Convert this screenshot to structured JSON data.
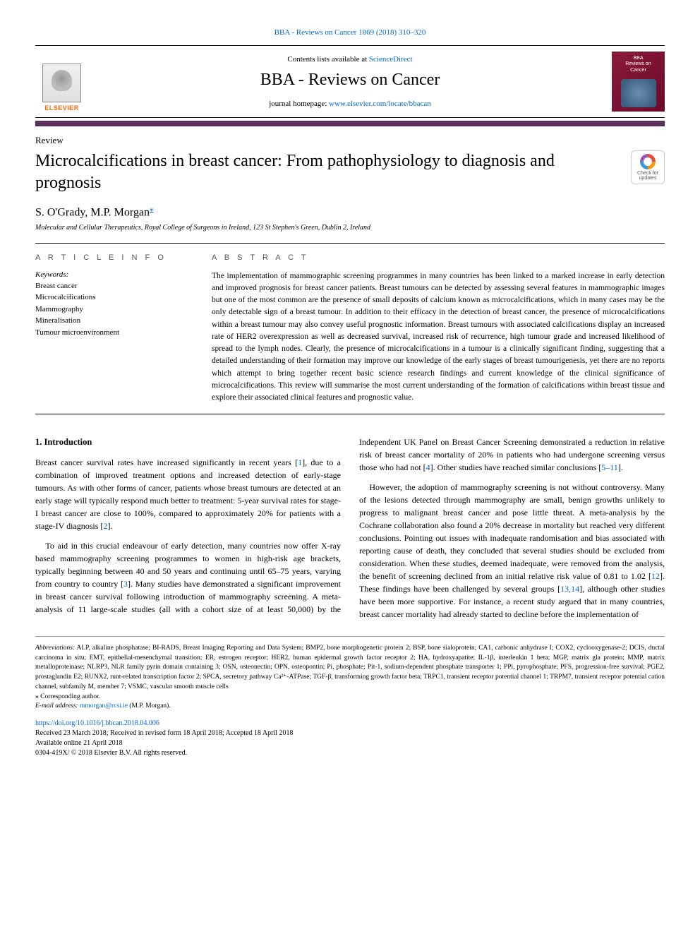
{
  "header": {
    "top_citation": "BBA - Reviews on Cancer 1869 (2018) 310–320",
    "contents_prefix": "Contents lists available at ",
    "contents_link": "ScienceDirect",
    "journal_name": "BBA - Reviews on Cancer",
    "homepage_prefix": "journal homepage: ",
    "homepage_link": "www.elsevier.com/locate/bbacan",
    "elsevier_label": "ELSEVIER",
    "cover_line1": "BBA",
    "cover_line2": "Reviews on",
    "cover_line3": "Cancer",
    "crossmark_line1": "Check for",
    "crossmark_line2": "updates"
  },
  "article": {
    "type": "Review",
    "title": "Microcalcifications in breast cancer: From pathophysiology to diagnosis and prognosis",
    "authors": "S. O'Grady, M.P. Morgan",
    "corresp_symbol": "⁎",
    "affiliation": "Molecular and Cellular Therapeutics, Royal College of Surgeons in Ireland, 123 St Stephen's Green, Dublin 2, Ireland"
  },
  "info": {
    "section_label": "A R T I C L E   I N F O",
    "keywords_label": "Keywords:",
    "keywords": [
      "Breast cancer",
      "Microcalcifications",
      "Mammography",
      "Mineralisation",
      "Tumour microenvironment"
    ]
  },
  "abstract": {
    "section_label": "A B S T R A C T",
    "text": "The implementation of mammographic screening programmes in many countries has been linked to a marked increase in early detection and improved prognosis for breast cancer patients. Breast tumours can be detected by assessing several features in mammographic images but one of the most common are the presence of small deposits of calcium known as microcalcifications, which in many cases may be the only detectable sign of a breast tumour. In addition to their efficacy in the detection of breast cancer, the presence of microcalcifications within a breast tumour may also convey useful prognostic information. Breast tumours with associated calcifications display an increased rate of HER2 overexpression as well as decreased survival, increased risk of recurrence, high tumour grade and increased likelihood of spread to the lymph nodes. Clearly, the presence of microcalcifications in a tumour is a clinically significant finding, suggesting that a detailed understanding of their formation may improve our knowledge of the early stages of breast tumourigenesis, yet there are no reports which attempt to bring together recent basic science research findings and current knowledge of the clinical significance of microcalcifications. This review will summarise the most current understanding of the formation of calcifications within breast tissue and explore their associated clinical features and prognostic value."
  },
  "body": {
    "heading1": "1. Introduction",
    "p1": "Breast cancer survival rates have increased significantly in recent years [1], due to a combination of improved treatment options and increased detection of early-stage tumours. As with other forms of cancer, patients whose breast tumours are detected at an early stage will typically respond much better to treatment: 5-year survival rates for stage-I breast cancer are close to 100%, compared to approximately 20% for patients with a stage-IV diagnosis [2].",
    "p2": "To aid in this crucial endeavour of early detection, many countries now offer X-ray based mammography screening programmes to women in high-risk age brackets, typically beginning between 40 and 50 years and continuing until 65–75 years, varying from country to country [3]. Many studies have demonstrated a significant improvement in breast cancer survival following introduction of mammography screening. A meta-analysis of 11 large-scale studies (all with a cohort size of at least 50,000) by the Independent UK Panel on Breast Cancer Screening demonstrated a reduction in relative risk of breast cancer mortality of 20% in patients who had undergone screening versus those who had not [4]. Other studies have reached similar conclusions [5–11].",
    "p3": "However, the adoption of mammography screening is not without controversy. Many of the lesions detected through mammography are small, benign growths unlikely to progress to malignant breast cancer and pose little threat. A meta-analysis by the Cochrane collaboration also found a 20% decrease in mortality but reached very different conclusions. Pointing out issues with inadequate randomisation and bias associated with reporting cause of death, they concluded that several studies should be excluded from consideration. When these studies, deemed inadequate, were removed from the analysis, the benefit of screening declined from an initial relative risk value of 0.81 to 1.02 [12]. These findings have been challenged by several groups [13,14], although other studies have been more supportive. For instance, a recent study argued that in many countries, breast cancer mortality had already started to decline before the implementation of"
  },
  "footer": {
    "abbrev_label": "Abbreviations:",
    "abbrev_text": " ALP, alkaline phosphatase; BI-RADS, Breast Imaging Reporting and Data System; BMP2, bone morphogenetic protein 2; BSP, bone sialoprotein; CA1, carbonic anhydrase I; COX2, cyclooxygenase-2; DCIS, ductal carcinoma in situ; EMT, epithelial-mesenchymal transition; ER, estrogen receptor; HER2, human epidermal growth factor receptor 2; HA, hydroxyapatite; IL-1β, interleukin 1 beta; MGP, matrix gla protein; MMP, matrix metalloproteinase; NLRP3, NLR family pyrin domain containing 3; OSN, osteonectin; OPN, osteopontin; Pi, phosphate; Pit-1, sodium-dependent phosphate transporter 1; PPi, pyrophosphate; PFS, progression-free survival; PGE2, prostaglandin E2; RUNX2, runt-related transcription factor 2; SPCA, secretory pathway Ca²⁺-ATPase; TGF-β, transforming growth factor beta; TRPC1, transient receptor potential channel 1; TRPM7, transient receptor potential cation channel, subfamily M, member 7; VSMC, vascular smooth muscle cells",
    "corresp_symbol": "⁎",
    "corresp_text": " Corresponding author.",
    "email_label": "E-mail address:",
    "email": "mmorgan@rcsi.ie",
    "email_suffix": " (M.P. Morgan).",
    "doi": "https://doi.org/10.1016/j.bbcan.2018.04.006",
    "received": "Received 23 March 2018; Received in revised form 18 April 2018; Accepted 18 April 2018",
    "available": "Available online 21 April 2018",
    "copyright": "0304-419X/ © 2018 Elsevier B.V. All rights reserved."
  },
  "style": {
    "link_color": "#0066cc",
    "bar_color": "#5a2d5a",
    "elsevier_orange": "#ff6600",
    "cover_bg": "#8b1a3a",
    "page_bg": "#ffffff",
    "text_color": "#000000",
    "abstract_fontsize": 11.5,
    "body_fontsize": 12,
    "title_fontsize": 24,
    "authors_fontsize": 16,
    "footer_fontsize": 9.5
  }
}
